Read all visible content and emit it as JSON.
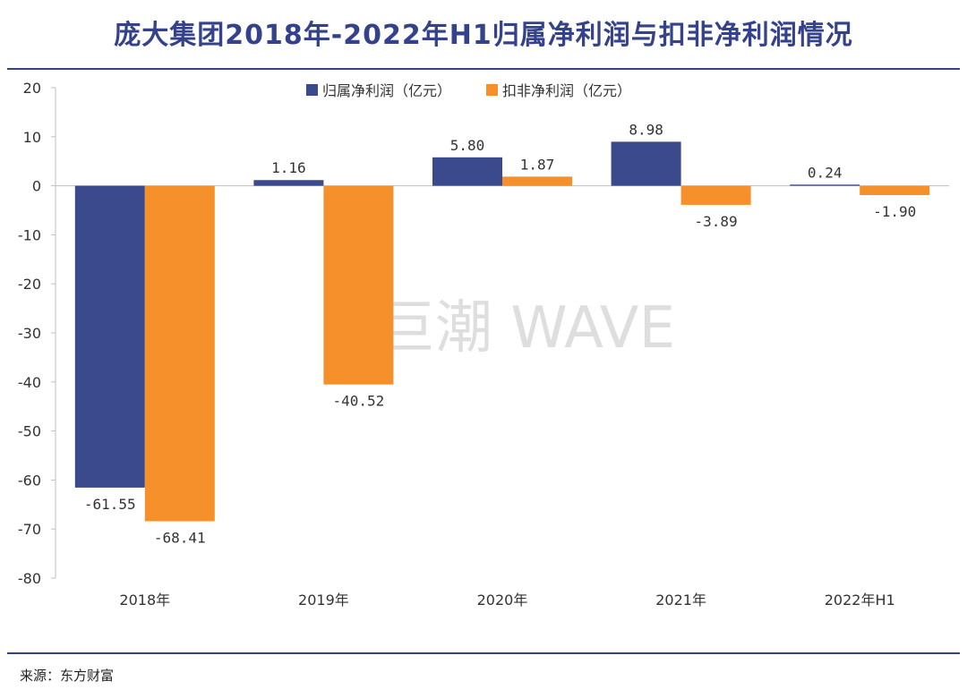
{
  "header": {
    "title": "庞大集团2018年-2022年H1归属净利润与扣非净利润情况"
  },
  "footer": {
    "source": "来源：东方财富"
  },
  "watermark": {
    "text": "巨潮 WAVE"
  },
  "chart_data": {
    "type": "bar",
    "categories": [
      "2018年",
      "2019年",
      "2020年",
      "2021年",
      "2022年H1"
    ],
    "series": [
      {
        "name": "归属净利润（亿元）",
        "color": "#3a4a8c",
        "values": [
          -61.55,
          1.16,
          5.8,
          8.98,
          0.24
        ],
        "labels": [
          "-61.55",
          "1.16",
          "5.80",
          "8.98",
          "0.24"
        ]
      },
      {
        "name": "扣非净利润（亿元）",
        "color": "#f5902a",
        "values": [
          -68.41,
          -40.52,
          1.87,
          -3.89,
          -1.9
        ],
        "labels": [
          "-68.41",
          "-40.52",
          "1.87",
          "-3.89",
          "-1.90"
        ]
      }
    ],
    "ylim": [
      -80,
      20
    ],
    "yticks": [
      20,
      10,
      0,
      -10,
      -20,
      -30,
      -40,
      -50,
      -60,
      -70,
      -80
    ],
    "legend_position": "top-center",
    "grid": false
  }
}
